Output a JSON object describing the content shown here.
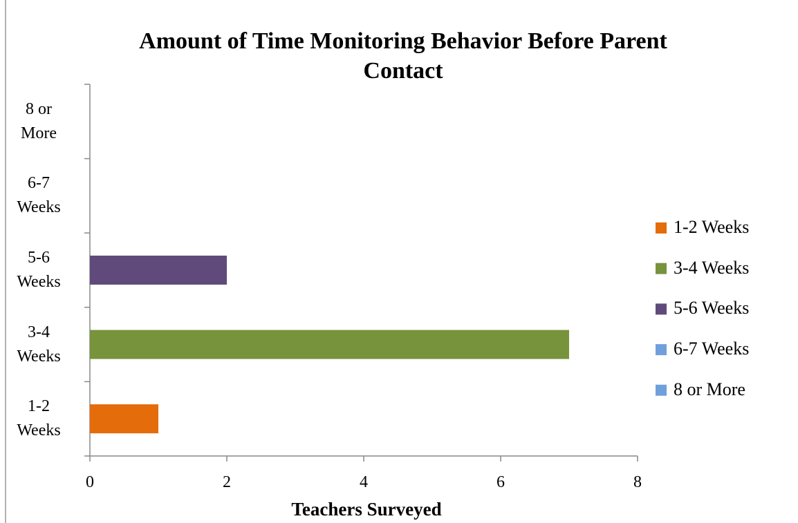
{
  "chart_data": {
    "type": "bar",
    "orientation": "horizontal",
    "title": "Amount of Time Monitoring Behavior Before Parent Contact",
    "x_label": "Teachers Surveyed",
    "categories": [
      "1-2 Weeks",
      "3-4 Weeks",
      "5-6 Weeks",
      "6-7 Weeks",
      "8 or More"
    ],
    "values": [
      1,
      7,
      2,
      0,
      0
    ],
    "colors": [
      "#e46c0a",
      "#77933c",
      "#604a7b",
      "#6fa0dc",
      "#6fa0dc"
    ],
    "xlim": [
      0,
      8
    ],
    "xticks": [
      0,
      2,
      4,
      6,
      8
    ],
    "grid": false,
    "legend": "right"
  }
}
